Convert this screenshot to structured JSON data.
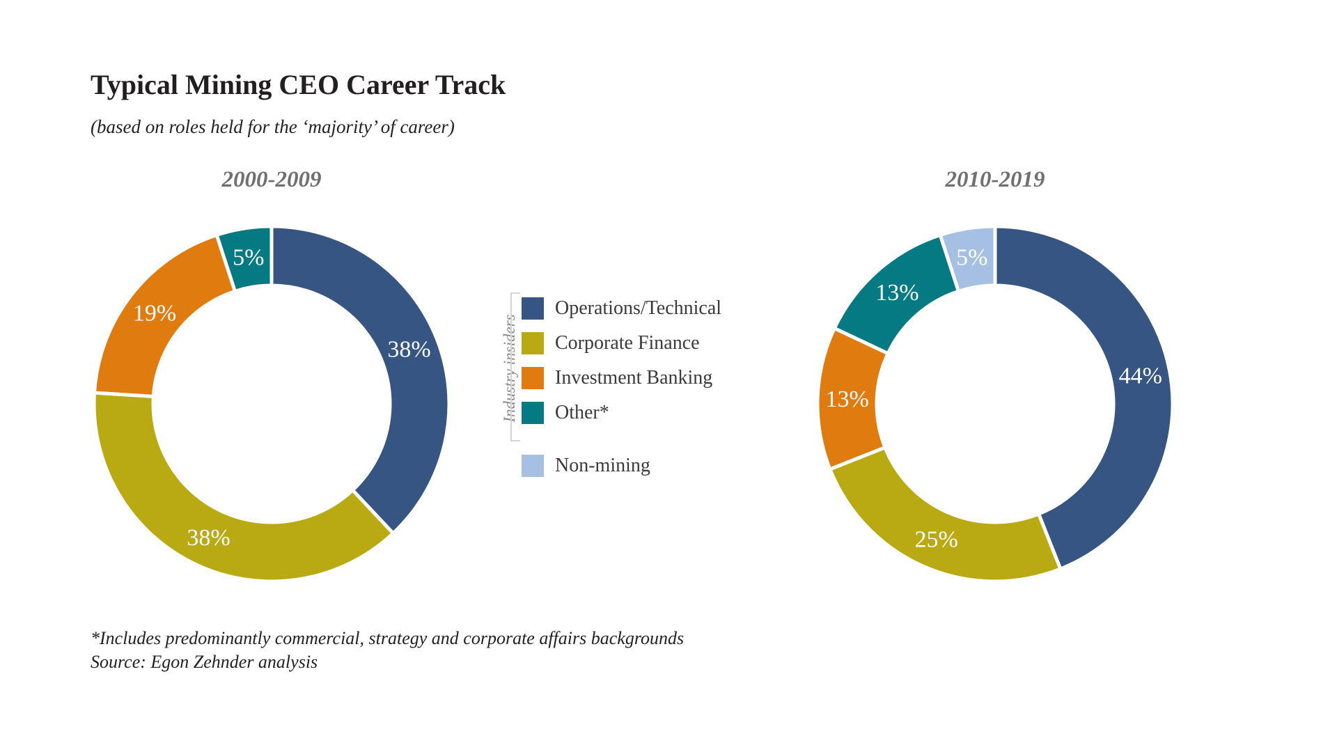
{
  "title": "Typical Mining CEO Career Track",
  "subtitle": "(based on roles held for the ‘majority’ of career)",
  "legend": {
    "group_label": "Industry insiders",
    "items": [
      {
        "label": "Operations/Technical",
        "color": "#375582"
      },
      {
        "label": "Corporate Finance",
        "color": "#b9aa14"
      },
      {
        "label": "Investment Banking",
        "color": "#e07b0f"
      },
      {
        "label": "Other*",
        "color": "#067a82"
      },
      {
        "label": "Non-mining",
        "color": "#a5c0e3"
      }
    ]
  },
  "chart_data": [
    {
      "type": "pie",
      "title": "2000-2009",
      "labels": [
        "Operations/Technical",
        "Corporate Finance",
        "Investment Banking",
        "Other*"
      ],
      "values": [
        38,
        38,
        19,
        5
      ],
      "value_labels": [
        "38%",
        "38%",
        "19%",
        "5%"
      ],
      "colors": [
        "#375582",
        "#b9aa14",
        "#e07b0f",
        "#067a82"
      ]
    },
    {
      "type": "pie",
      "title": "2010-2019",
      "labels": [
        "Operations/Technical",
        "Corporate Finance",
        "Investment Banking",
        "Other*",
        "Non-mining"
      ],
      "values": [
        44,
        25,
        13,
        13,
        5
      ],
      "value_labels": [
        "44%",
        "25%",
        "13%",
        "13%",
        "5%"
      ],
      "colors": [
        "#375582",
        "#b9aa14",
        "#e07b0f",
        "#067a82",
        "#a5c0e3"
      ]
    }
  ],
  "footnote": {
    "note": "*Includes predominantly commercial, strategy and corporate affairs backgrounds",
    "source": "Source: Egon Zehnder analysis"
  }
}
